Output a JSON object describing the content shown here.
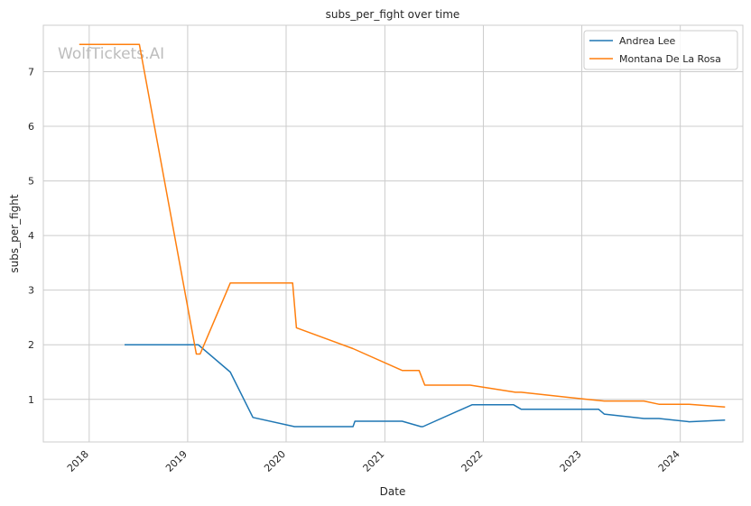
{
  "chart_data": {
    "type": "line",
    "title": "subs_per_fight over time",
    "xlabel": "Date",
    "ylabel": "subs_per_fight",
    "watermark": "WolfTickets.AI",
    "x_ticks": [
      "2018",
      "2019",
      "2020",
      "2021",
      "2022",
      "2023",
      "2024"
    ],
    "y_ticks": [
      "1",
      "2",
      "3",
      "4",
      "5",
      "6",
      "7"
    ],
    "ylim": [
      0.22,
      7.85
    ],
    "xlim": [
      "2017-07-15",
      "2024-08-20"
    ],
    "grid": true,
    "legend_position": "top-right",
    "colors": {
      "Andrea Lee": "#1f77b4",
      "Montana De La Rosa": "#ff7f0e"
    },
    "series": [
      {
        "name": "Andrea Lee",
        "points": [
          [
            "2018-05-12",
            2.0
          ],
          [
            "2019-02-09",
            2.0
          ],
          [
            "2019-06-08",
            1.5
          ],
          [
            "2019-08-31",
            0.67
          ],
          [
            "2020-02-01",
            0.5
          ],
          [
            "2020-09-05",
            0.5
          ],
          [
            "2020-09-12",
            0.6
          ],
          [
            "2021-03-06",
            0.6
          ],
          [
            "2021-05-15",
            0.5
          ],
          [
            "2021-05-22",
            0.5
          ],
          [
            "2021-11-20",
            0.9
          ],
          [
            "2022-04-23",
            0.9
          ],
          [
            "2022-05-21",
            0.82
          ],
          [
            "2023-03-04",
            0.82
          ],
          [
            "2023-03-25",
            0.73
          ],
          [
            "2023-08-19",
            0.65
          ],
          [
            "2023-10-14",
            0.65
          ],
          [
            "2024-02-03",
            0.59
          ],
          [
            "2024-06-15",
            0.62
          ]
        ]
      },
      {
        "name": "Montana De La Rosa",
        "points": [
          [
            "2017-11-25",
            7.5
          ],
          [
            "2018-07-06",
            7.5
          ],
          [
            "2019-02-02",
            1.83
          ],
          [
            "2019-02-16",
            1.83
          ],
          [
            "2019-06-08",
            3.13
          ],
          [
            "2020-01-25",
            3.13
          ],
          [
            "2020-02-08",
            2.31
          ],
          [
            "2020-09-05",
            1.93
          ],
          [
            "2021-03-06",
            1.53
          ],
          [
            "2021-05-08",
            1.53
          ],
          [
            "2021-05-29",
            1.26
          ],
          [
            "2021-11-13",
            1.26
          ],
          [
            "2022-04-30",
            1.13
          ],
          [
            "2022-05-21",
            1.13
          ],
          [
            "2023-01-21",
            1.0
          ],
          [
            "2023-03-25",
            0.97
          ],
          [
            "2023-08-19",
            0.97
          ],
          [
            "2023-10-14",
            0.91
          ],
          [
            "2024-02-03",
            0.91
          ],
          [
            "2024-06-15",
            0.86
          ]
        ]
      }
    ]
  }
}
